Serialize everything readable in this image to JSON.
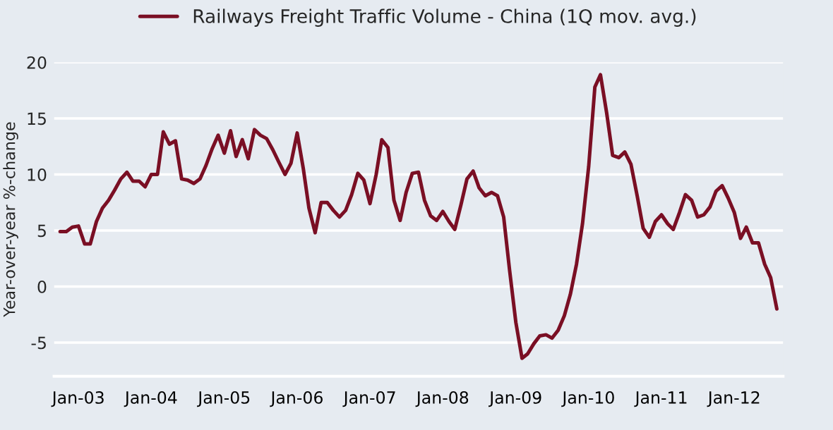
{
  "chart_data": {
    "type": "line",
    "ylabel": "Year-over-year %-change",
    "x": [
      "2002-10",
      "2002-11",
      "2002-12",
      "2003-01",
      "2003-02",
      "2003-03",
      "2003-04",
      "2003-05",
      "2003-06",
      "2003-07",
      "2003-08",
      "2003-09",
      "2003-10",
      "2003-11",
      "2003-12",
      "2004-01",
      "2004-02",
      "2004-03",
      "2004-04",
      "2004-05",
      "2004-06",
      "2004-07",
      "2004-08",
      "2004-09",
      "2004-10",
      "2004-11",
      "2004-12",
      "2005-01",
      "2005-02",
      "2005-03",
      "2005-04",
      "2005-05",
      "2005-06",
      "2005-07",
      "2005-08",
      "2005-09",
      "2005-10",
      "2005-11",
      "2005-12",
      "2006-01",
      "2006-02",
      "2006-03",
      "2006-04",
      "2006-05",
      "2006-06",
      "2006-07",
      "2006-08",
      "2006-09",
      "2006-10",
      "2006-11",
      "2006-12",
      "2007-01",
      "2007-02",
      "2007-03",
      "2007-04",
      "2007-05",
      "2007-06",
      "2007-07",
      "2007-08",
      "2007-09",
      "2007-10",
      "2007-11",
      "2007-12",
      "2008-01",
      "2008-02",
      "2008-03",
      "2008-04",
      "2008-05",
      "2008-06",
      "2008-07",
      "2008-08",
      "2008-09",
      "2008-10",
      "2008-11",
      "2008-12",
      "2009-01",
      "2009-02",
      "2009-03",
      "2009-04",
      "2009-05",
      "2009-06",
      "2009-07",
      "2009-08",
      "2009-09",
      "2009-10",
      "2009-11",
      "2009-12",
      "2010-01",
      "2010-02",
      "2010-03",
      "2010-04",
      "2010-05",
      "2010-06",
      "2010-07",
      "2010-08",
      "2010-09",
      "2010-10",
      "2010-11",
      "2010-12",
      "2011-01",
      "2011-02",
      "2011-03",
      "2011-04",
      "2011-05",
      "2011-06",
      "2011-07",
      "2011-08",
      "2011-09",
      "2011-10",
      "2011-11",
      "2011-12",
      "2012-01",
      "2012-02",
      "2012-03",
      "2012-04",
      "2012-05",
      "2012-06",
      "2012-07",
      "2012-08"
    ],
    "series": [
      {
        "name": "Railways Freight Traffic Volume - China (1Q mov. avg.)",
        "color": "#7a0f24",
        "values": [
          4.9,
          4.9,
          5.3,
          5.4,
          3.8,
          3.8,
          5.8,
          7.0,
          7.7,
          8.6,
          9.6,
          10.2,
          9.4,
          9.4,
          8.9,
          10.0,
          10.0,
          13.8,
          12.7,
          13.0,
          9.6,
          9.5,
          9.2,
          9.6,
          10.8,
          12.3,
          13.5,
          11.9,
          13.9,
          11.6,
          13.1,
          11.4,
          14.0,
          13.5,
          13.2,
          12.2,
          11.1,
          10.0,
          11.0,
          13.7,
          10.5,
          7.0,
          4.8,
          7.5,
          7.5,
          6.8,
          6.2,
          6.8,
          8.2,
          10.1,
          9.5,
          7.4,
          10.0,
          13.1,
          12.4,
          7.7,
          5.9,
          8.4,
          10.1,
          10.2,
          7.7,
          6.3,
          5.9,
          6.7,
          5.8,
          5.1,
          7.3,
          9.6,
          10.3,
          8.8,
          8.1,
          8.4,
          8.1,
          6.2,
          1.4,
          -3.2,
          -6.4,
          -6.0,
          -5.1,
          -4.4,
          -4.3,
          -4.6,
          -3.9,
          -2.6,
          -0.7,
          2.0,
          5.6,
          10.7,
          17.8,
          18.9,
          15.5,
          11.7,
          11.5,
          12.0,
          10.9,
          8.1,
          5.2,
          4.4,
          5.8,
          6.4,
          5.6,
          5.1,
          6.6,
          8.2,
          7.7,
          6.2,
          6.4,
          7.1,
          8.5,
          9.0,
          7.9,
          6.6,
          4.3,
          5.3,
          3.9,
          3.9,
          2.0,
          0.8,
          -2.0
        ]
      }
    ],
    "xlim": [
      "2002-09",
      "2012-09"
    ],
    "xticks": [
      {
        "value": "2003-01",
        "label": "Jan-03"
      },
      {
        "value": "2004-01",
        "label": "Jan-04"
      },
      {
        "value": "2005-01",
        "label": "Jan-05"
      },
      {
        "value": "2006-01",
        "label": "Jan-06"
      },
      {
        "value": "2007-01",
        "label": "Jan-07"
      },
      {
        "value": "2008-01",
        "label": "Jan-08"
      },
      {
        "value": "2009-01",
        "label": "Jan-09"
      },
      {
        "value": "2010-01",
        "label": "Jan-10"
      },
      {
        "value": "2011-01",
        "label": "Jan-11"
      },
      {
        "value": "2012-01",
        "label": "Jan-12"
      }
    ],
    "ylim": [
      -8,
      20
    ],
    "yticks": [
      -5,
      0,
      5,
      10,
      15,
      20
    ],
    "grid": "y",
    "legend": "top",
    "marker": "none",
    "line_style": "solid"
  }
}
